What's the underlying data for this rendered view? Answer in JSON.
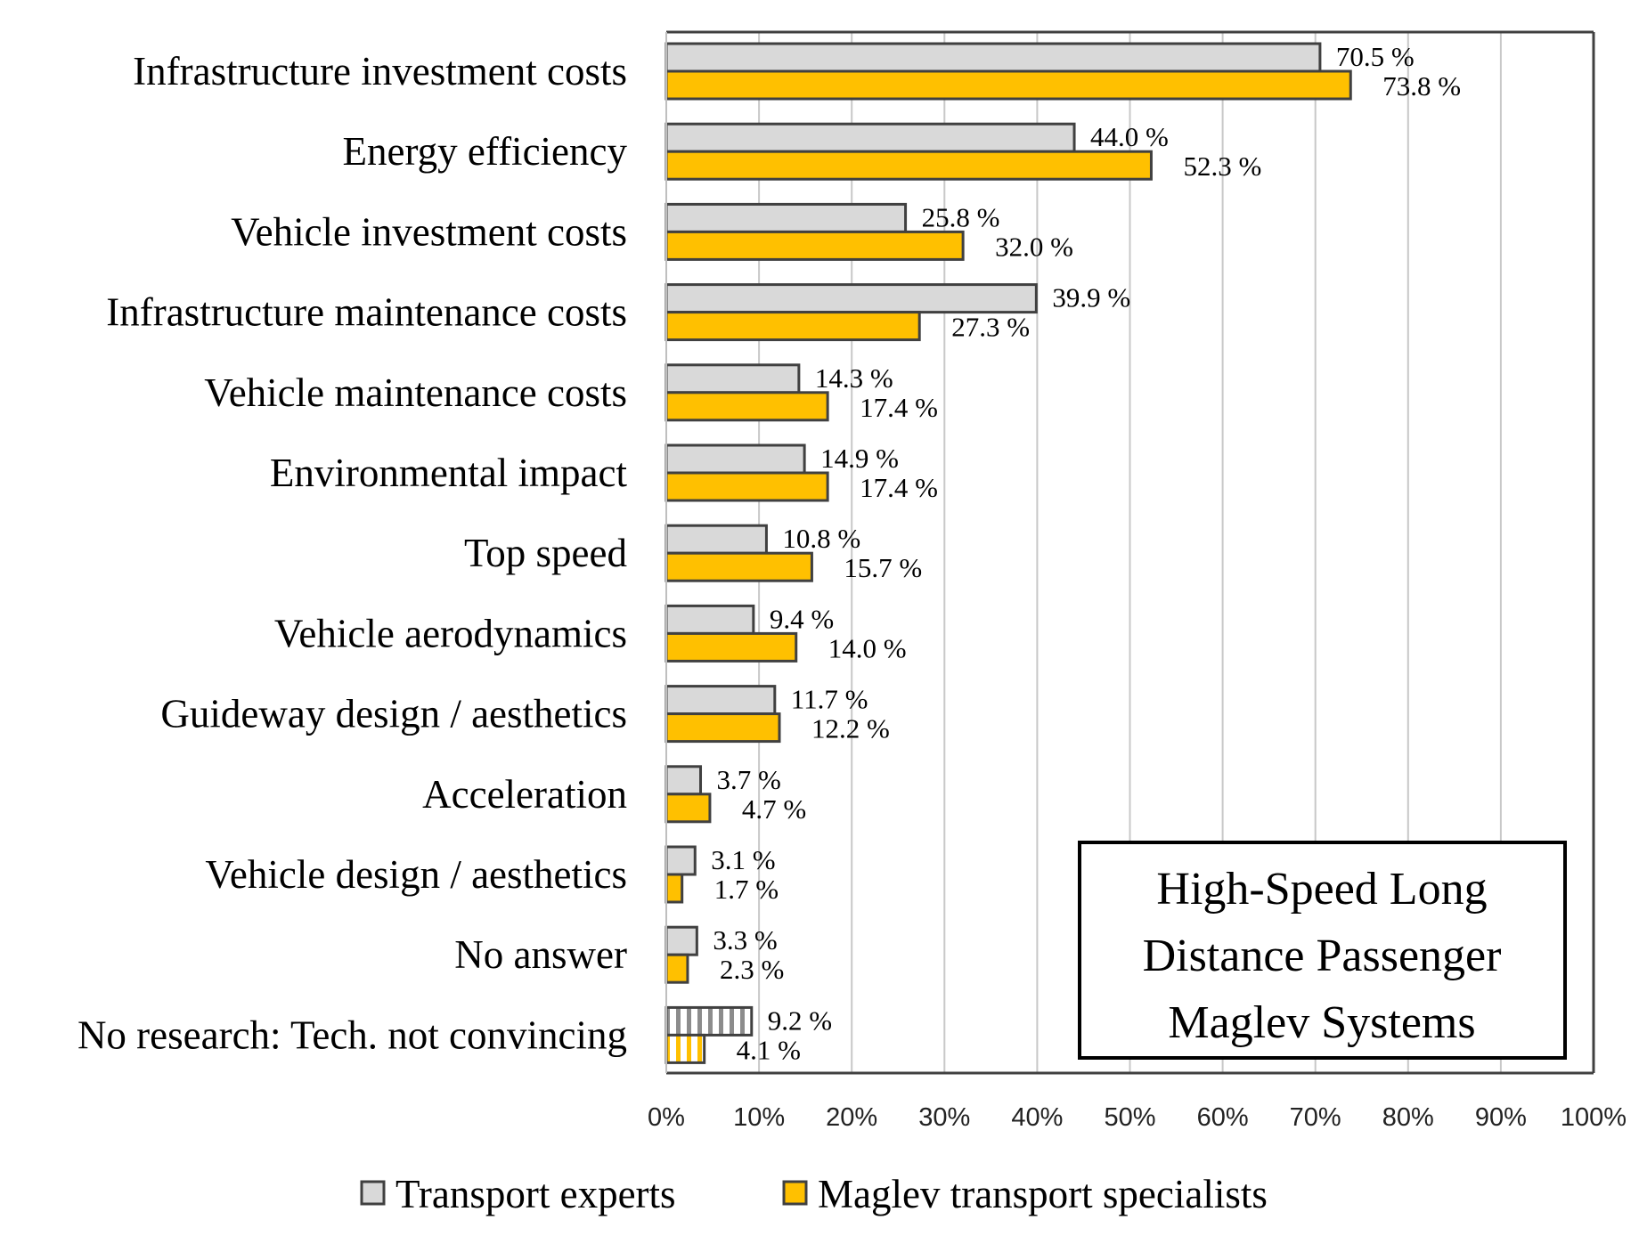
{
  "chart_data": {
    "type": "bar",
    "orientation": "horizontal",
    "title": "High-Speed Long Distance Passenger Maglev Systems",
    "title_lines": [
      "High-Speed Long",
      "Distance Passenger",
      "Maglev Systems"
    ],
    "title_placement": "inside-bottom-right",
    "xlabel": "",
    "ylabel": "",
    "xlim": [
      0,
      100
    ],
    "x_ticks": [
      0,
      10,
      20,
      30,
      40,
      50,
      60,
      70,
      80,
      90,
      100
    ],
    "x_tick_labels": [
      "0%",
      "10%",
      "20%",
      "30%",
      "40%",
      "50%",
      "60%",
      "70%",
      "80%",
      "90%",
      "100%"
    ],
    "grid": true,
    "legend_placement": "bottom",
    "categories": [
      "Infrastructure investment costs",
      "Energy efficiency",
      "Vehicle investment costs",
      "Infrastructure maintenance costs",
      "Vehicle maintenance costs",
      "Environmental impact",
      "Top speed",
      "Vehicle aerodynamics",
      "Guideway design / aesthetics",
      "Acceleration",
      "Vehicle design / aesthetics",
      "No answer",
      "No research: Tech. not convincing"
    ],
    "hatched_categories": [
      "No research: Tech. not convincing"
    ],
    "series": [
      {
        "name": "Transport experts",
        "color": "#d9d9d9",
        "values": [
          70.5,
          44.0,
          25.8,
          39.9,
          14.3,
          14.9,
          10.8,
          9.4,
          11.7,
          3.7,
          3.1,
          3.3,
          9.2
        ],
        "labels": [
          "70.5 %",
          "44.0 %",
          "25.8 %",
          "39.9 %",
          "14.3 %",
          "14.9 %",
          "10.8 %",
          "9.4 %",
          "11.7 %",
          "3.7 %",
          "3.1 %",
          "3.3 %",
          "9.2 %"
        ]
      },
      {
        "name": "Maglev transport specialists",
        "color": "#ffc000",
        "values": [
          73.8,
          52.3,
          32.0,
          27.3,
          17.4,
          17.4,
          15.7,
          14.0,
          12.2,
          4.7,
          1.7,
          2.3,
          4.1
        ],
        "labels": [
          "73.8 %",
          "52.3 %",
          "32.0 %",
          "27.3 %",
          "17.4 %",
          "17.4 %",
          "15.7 %",
          "14.0 %",
          "12.2 %",
          "4.7 %",
          "1.7 %",
          "2.3 %",
          "4.1 %"
        ]
      }
    ],
    "colors": {
      "bar_outline": "#404040",
      "gridline": "#c8c8c8",
      "axis": "#404040"
    }
  }
}
